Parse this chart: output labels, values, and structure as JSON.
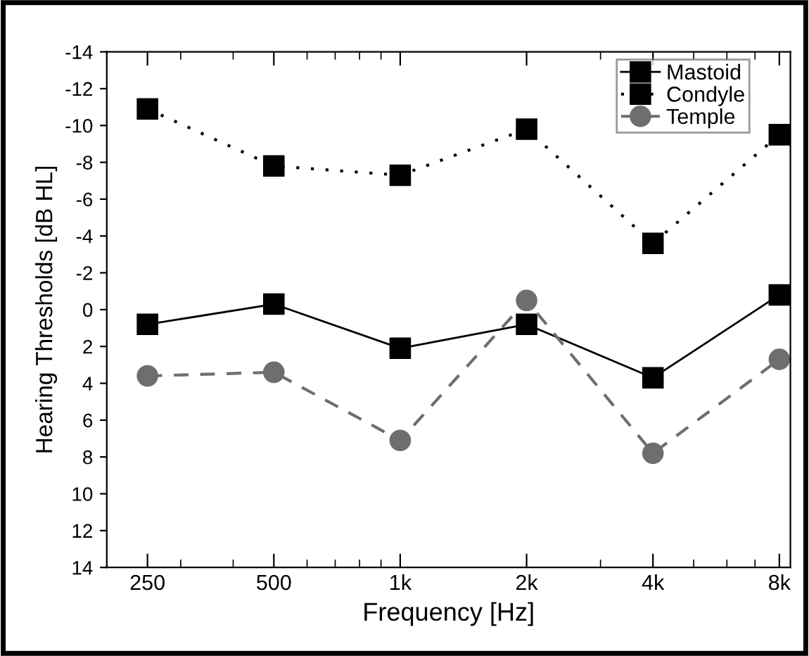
{
  "chart_data": {
    "type": "line",
    "xlabel": "Frequency [Hz]",
    "ylabel": "Hearing Thresholds [dB HL]",
    "x": [
      250,
      500,
      1000,
      2000,
      4000,
      8000
    ],
    "log": "x",
    "xlim": [
      200,
      8500
    ],
    "xticks": [
      250,
      500,
      {
        "value": 1000,
        "label": "1k"
      },
      {
        "value": 2000,
        "label": "2k"
      },
      {
        "value": 4000,
        "label": "4k"
      },
      {
        "value": 8000,
        "label": "8k"
      }
    ],
    "ylim": [
      14,
      -14
    ],
    "yticks": [
      14,
      12,
      10,
      8,
      6,
      4,
      2,
      0,
      -2,
      -4,
      -6,
      -8,
      -10,
      -12,
      -14
    ],
    "grid": false,
    "legend": "top right",
    "series": [
      {
        "name": "Mastoid",
        "color": "#000000",
        "marker": "square",
        "line_style": "solid",
        "values": [
          0.8,
          -0.3,
          2.1,
          0.8,
          3.7,
          -0.8
        ]
      },
      {
        "name": "Condyle",
        "color": "#000000",
        "marker": "square",
        "line_style": "dotted",
        "values": [
          -10.9,
          -7.8,
          -7.3,
          -9.8,
          -3.6,
          -9.5
        ]
      },
      {
        "name": "Temple",
        "color": "#6e6e6e",
        "marker": "circle",
        "line_style": "dashed",
        "values": [
          3.6,
          3.4,
          7.1,
          -0.5,
          7.8,
          2.7
        ]
      }
    ]
  }
}
